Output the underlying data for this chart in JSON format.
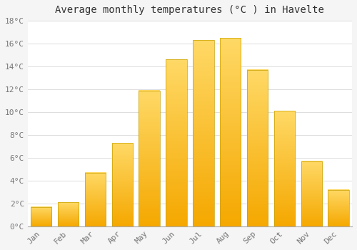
{
  "title": "Average monthly temperatures (°C ) in Havelte",
  "months": [
    "Jan",
    "Feb",
    "Mar",
    "Apr",
    "May",
    "Jun",
    "Jul",
    "Aug",
    "Sep",
    "Oct",
    "Nov",
    "Dec"
  ],
  "values": [
    1.7,
    2.1,
    4.7,
    7.3,
    11.9,
    14.6,
    16.3,
    16.5,
    13.7,
    10.1,
    5.7,
    3.2
  ],
  "bar_color_bottom": "#F5A800",
  "bar_color_top": "#FFD966",
  "bar_edge_color": "#C8A000",
  "background_color": "#F5F5F5",
  "plot_bg_color": "#FFFFFF",
  "grid_color": "#DDDDDD",
  "tick_label_color": "#777777",
  "title_color": "#333333",
  "ylim": [
    0,
    18
  ],
  "yticks": [
    0,
    2,
    4,
    6,
    8,
    10,
    12,
    14,
    16,
    18
  ],
  "title_fontsize": 10,
  "tick_fontsize": 8
}
